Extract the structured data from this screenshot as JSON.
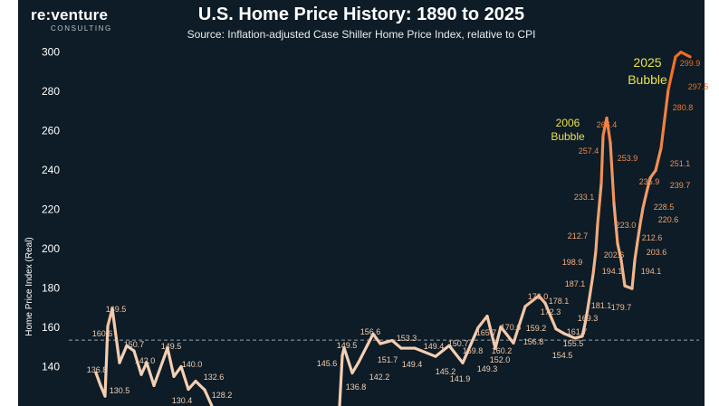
{
  "logo": {
    "main": "re:venture",
    "sub": "CONSULTING"
  },
  "chart_data": {
    "type": "line",
    "title": "U.S. Home Price History: 1890 to 2025",
    "subtitle": "Source: Inflation-adjusted Case Shiller Home Price Index, relative to CPI",
    "ylabel": "Home Price Index (Real)",
    "ylim": [
      120,
      308
    ],
    "yticks": [
      140,
      160,
      180,
      200,
      220,
      240,
      260,
      280,
      300
    ],
    "reference_line": 153.5,
    "colors": {
      "background": "#0d1c26",
      "low": "#f3cfb4",
      "high": "#ef6a1f",
      "bubble_label": "#e8e04a"
    },
    "series": [
      {
        "name": "early",
        "values": [
          136.8,
          130.5,
          125.0,
          160.6,
          169.5,
          142.0,
          150.7,
          148.0,
          136.0,
          142.0,
          130.4,
          149.5,
          135.0,
          140.0,
          128.5,
          132.6,
          128.2,
          120.0
        ]
      },
      {
        "name": "postwar_to_2025",
        "values": [
          120.0,
          145.6,
          149.5,
          136.8,
          142.2,
          156.6,
          151.7,
          153.3,
          149.4,
          149.4,
          145.2,
          150.7,
          141.9,
          159.8,
          165.7,
          149.3,
          160.2,
          152.0,
          170.6,
          176.0,
          172.3,
          159.2,
          156.8,
          154.5,
          155.5,
          161.7,
          169.3,
          178.1,
          187.1,
          198.9,
          212.7,
          233.1,
          257.4,
          266.4,
          253.9,
          223.0,
          202.6,
          194.1,
          181.1,
          179.7,
          194.1,
          203.6,
          212.6,
          220.6,
          228.5,
          235.9,
          239.7,
          251.1,
          280.8,
          297.5,
          299.9,
          297.5
        ]
      }
    ],
    "data_labels": [
      "136.8",
      "130.5",
      "160.6",
      "169.5",
      "142.0",
      "150.7",
      "130.4",
      "149.5",
      "140.0",
      "132.6",
      "128.2",
      "145.6",
      "149.5",
      "136.8",
      "142.2",
      "156.6",
      "151.7",
      "153.3",
      "149.4",
      "149.4",
      "145.2",
      "150.7",
      "141.9",
      "159.8",
      "165.7",
      "149.3",
      "160.2",
      "152.0",
      "170.6",
      "176.0",
      "172.3",
      "159.2",
      "156.8",
      "154.5",
      "155.5",
      "161.7",
      "169.3",
      "178.1",
      "187.1",
      "198.9",
      "212.7",
      "233.1",
      "257.4",
      "266.4",
      "253.9",
      "223.0",
      "202.6",
      "194.1",
      "181.1",
      "179.7",
      "194.1",
      "203.6",
      "212.6",
      "220.6",
      "228.5",
      "235.9",
      "239.7",
      "251.1",
      "280.8",
      "299.9",
      "297.5"
    ],
    "annotations": [
      {
        "line1": "2006",
        "line2": "Bubble"
      },
      {
        "line1": "2025",
        "line2": "Bubble"
      }
    ]
  }
}
